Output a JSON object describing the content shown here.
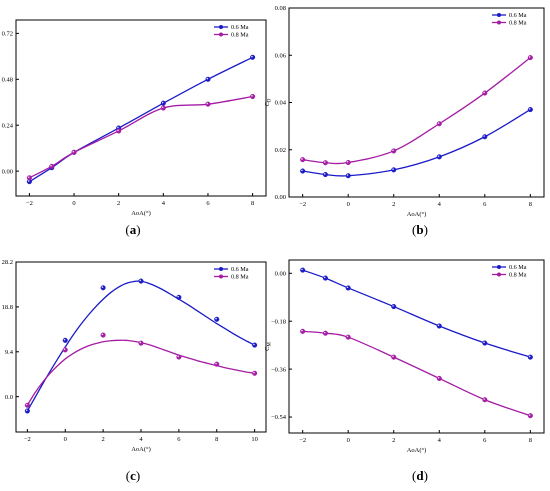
{
  "colors": {
    "series_06": "#1b1bc8",
    "series_08": "#a51ca5"
  },
  "chart_data": [
    {
      "type": "line",
      "panel": "a",
      "caption": "(a)",
      "xlabel": "AoA(°)",
      "ylabel": "C",
      "ylabel_sub": "L",
      "xlim": [
        -2.6,
        8.6
      ],
      "ylim": [
        -0.13,
        0.79
      ],
      "xticks": [
        -2,
        0,
        2,
        4,
        6,
        8
      ],
      "xtick_labels": [
        "−2",
        "0",
        "2",
        "4",
        "6",
        "8"
      ],
      "yticks": [
        0.0,
        0.24,
        0.48,
        0.72
      ],
      "ytick_labels": [
        "0.00",
        "0.24",
        "0.48",
        "0.72"
      ],
      "legend_position": "top-right",
      "series": [
        {
          "name": "0.6 Ma",
          "color_key": "series_06",
          "x": [
            -2,
            -1,
            0,
            2,
            4,
            6,
            8
          ],
          "y": [
            -0.055,
            0.018,
            0.098,
            0.225,
            0.355,
            0.48,
            0.595
          ]
        },
        {
          "name": "0.8 Ma",
          "color_key": "series_08",
          "x": [
            -2,
            -1,
            0,
            2,
            4,
            6,
            8
          ],
          "y": [
            -0.035,
            0.025,
            0.098,
            0.21,
            0.33,
            0.35,
            0.39
          ]
        }
      ]
    },
    {
      "type": "line",
      "panel": "b",
      "caption": "(b)",
      "xlabel": "AoA(°)",
      "ylabel": "C",
      "ylabel_sub": "D",
      "xlim": [
        -2.6,
        8.6
      ],
      "ylim": [
        0.0,
        0.08
      ],
      "xticks": [
        -2,
        0,
        2,
        4,
        6,
        8
      ],
      "xtick_labels": [
        "−2",
        "0",
        "2",
        "4",
        "6",
        "8"
      ],
      "yticks": [
        0.0,
        0.02,
        0.04,
        0.06,
        0.08
      ],
      "ytick_labels": [
        "0.00",
        "0.02",
        "0.04",
        "0.06",
        "0.08"
      ],
      "legend_position": "top-right",
      "series": [
        {
          "name": "0.6 Ma",
          "color_key": "series_06",
          "x": [
            -2,
            -1,
            0,
            2,
            4,
            6,
            8
          ],
          "y": [
            0.011,
            0.0095,
            0.009,
            0.0115,
            0.017,
            0.0255,
            0.037
          ]
        },
        {
          "name": "0.8 Ma",
          "color_key": "series_08",
          "x": [
            -2,
            -1,
            0,
            2,
            4,
            6,
            8
          ],
          "y": [
            0.0158,
            0.0145,
            0.0146,
            0.0195,
            0.031,
            0.044,
            0.059
          ]
        }
      ]
    },
    {
      "type": "line",
      "panel": "c",
      "caption": "(c)",
      "xlabel": "AoA(°)",
      "ylabel": "K",
      "ylabel_sub": "",
      "xlim": [
        -2.6,
        10.6
      ],
      "ylim": [
        -7.4,
        28.2
      ],
      "xticks": [
        -2,
        0,
        2,
        4,
        6,
        8,
        10
      ],
      "xtick_labels": [
        "−2",
        "0",
        "2",
        "4",
        "6",
        "8",
        "10"
      ],
      "yticks": [
        0.0,
        9.4,
        18.8,
        28.2
      ],
      "ytick_labels": [
        "0.0",
        "9.4",
        "18.8",
        "28.2"
      ],
      "legend_position": "top-right",
      "series": [
        {
          "name": "0.6 Ma",
          "color_key": "series_06",
          "x": [
            -2,
            0,
            2,
            4,
            6,
            8,
            10
          ],
          "y": [
            -3.0,
            11.8,
            22.8,
            24.2,
            20.8,
            16.2,
            10.8
          ],
          "curve_x": [
            -2,
            -1.6,
            -1.2,
            -0.8,
            -0.4,
            0,
            0.4,
            0.8,
            1.2,
            1.6,
            2,
            2.4,
            2.8,
            3.2,
            3.6,
            4,
            4.5,
            5,
            5.5,
            6,
            6.5,
            7,
            7.5,
            8,
            8.5,
            9,
            9.5,
            10
          ],
          "curve_y": [
            -3.0,
            -0.2,
            2.6,
            5.3,
            7.9,
            10.4,
            12.8,
            15.0,
            17.0,
            18.8,
            20.4,
            21.8,
            22.9,
            23.7,
            24.1,
            24.2,
            23.6,
            22.7,
            21.6,
            20.4,
            19.2,
            17.9,
            16.6,
            15.3,
            14.1,
            12.9,
            11.8,
            10.8
          ]
        },
        {
          "name": "0.8 Ma",
          "color_key": "series_08",
          "x": [
            -2,
            0,
            2,
            4,
            6,
            8,
            10
          ],
          "y": [
            -1.8,
            9.8,
            12.9,
            11.2,
            8.3,
            6.8,
            4.9
          ],
          "curve_x": [
            -2,
            -1.6,
            -1.2,
            -0.8,
            -0.4,
            0,
            0.4,
            0.8,
            1.2,
            1.6,
            2,
            2.4,
            2.8,
            3.2,
            3.6,
            4,
            4.5,
            5,
            5.5,
            6,
            6.5,
            7,
            7.5,
            8,
            8.5,
            9,
            9.5,
            10
          ],
          "curve_y": [
            -1.8,
            0.8,
            3.0,
            4.9,
            6.5,
            7.9,
            9.0,
            9.9,
            10.6,
            11.1,
            11.5,
            11.7,
            11.8,
            11.8,
            11.6,
            11.3,
            10.8,
            10.1,
            9.4,
            8.7,
            8.1,
            7.5,
            7.0,
            6.5,
            6.0,
            5.6,
            5.2,
            4.9
          ]
        }
      ]
    },
    {
      "type": "line",
      "panel": "d",
      "caption": "(d)",
      "xlabel": "AoA(°)",
      "ylabel": "C",
      "ylabel_sub": "M",
      "xlim": [
        -2.6,
        8.6
      ],
      "ylim": [
        -0.6,
        0.05
      ],
      "xticks": [
        -2,
        0,
        2,
        4,
        6,
        8
      ],
      "xtick_labels": [
        "−2",
        "0",
        "2",
        "4",
        "6",
        "8"
      ],
      "yticks": [
        0.0,
        -0.18,
        -0.36,
        -0.54
      ],
      "ytick_labels": [
        "0.00",
        "−0.18",
        "−0.36",
        "−0.54"
      ],
      "legend_position": "top-right",
      "series": [
        {
          "name": "0.6 Ma",
          "color_key": "series_06",
          "x": [
            -2,
            -1,
            0,
            2,
            4,
            6,
            8
          ],
          "y": [
            0.012,
            -0.018,
            -0.055,
            -0.125,
            -0.198,
            -0.262,
            -0.315
          ]
        },
        {
          "name": "0.8 Ma",
          "color_key": "series_08",
          "x": [
            -2,
            -1,
            0,
            2,
            4,
            6,
            8
          ],
          "y": [
            -0.218,
            -0.225,
            -0.24,
            -0.315,
            -0.395,
            -0.475,
            -0.535
          ]
        }
      ]
    }
  ]
}
